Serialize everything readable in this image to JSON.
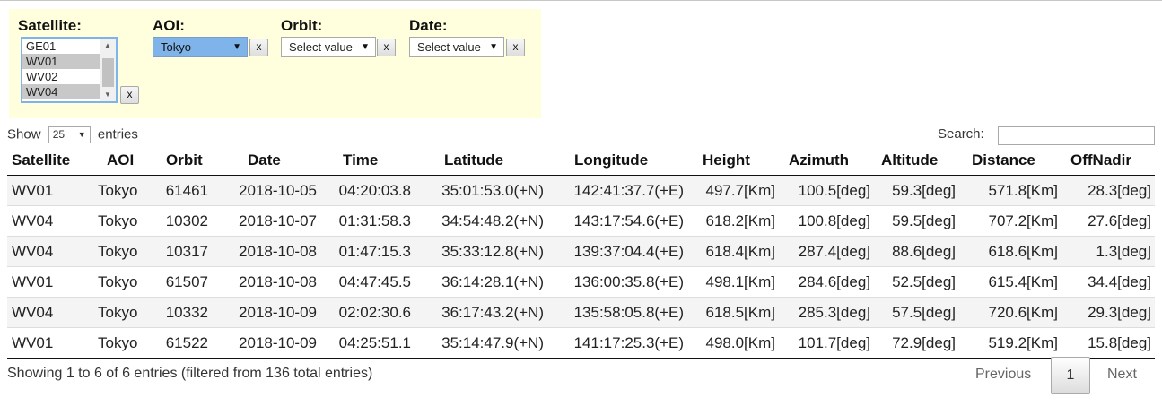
{
  "filters": {
    "satellite": {
      "label": "Satellite:",
      "options": [
        {
          "text": "GE01",
          "selected": false
        },
        {
          "text": "WV01",
          "selected": true
        },
        {
          "text": "WV02",
          "selected": false
        },
        {
          "text": "WV04",
          "selected": true
        }
      ],
      "clear_label": "x"
    },
    "aoi": {
      "label": "AOI:",
      "value": "Tokyo",
      "clear_label": "x"
    },
    "orbit": {
      "label": "Orbit:",
      "value": "Select value",
      "clear_label": "x"
    },
    "date": {
      "label": "Date:",
      "value": "Select value",
      "clear_label": "x"
    }
  },
  "length": {
    "prefix": "Show",
    "value": "25",
    "suffix": "entries"
  },
  "search": {
    "label": "Search:",
    "value": ""
  },
  "table": {
    "headers": [
      "Satellite",
      "AOI",
      "Orbit",
      "Date",
      "Time",
      "Latitude",
      "Longitude",
      "Height",
      "Azimuth",
      "Altitude",
      "Distance",
      "OffNadir"
    ],
    "rows": [
      [
        "WV01",
        "Tokyo",
        "61461",
        "2018-10-05",
        "04:20:03.8",
        "35:01:53.0(+N)",
        "142:41:37.7(+E)",
        "497.7[Km]",
        "100.5[deg]",
        "59.3[deg]",
        "571.8[Km]",
        "28.3[deg]"
      ],
      [
        "WV04",
        "Tokyo",
        "10302",
        "2018-10-07",
        "01:31:58.3",
        "34:54:48.2(+N)",
        "143:17:54.6(+E)",
        "618.2[Km]",
        "100.8[deg]",
        "59.5[deg]",
        "707.2[Km]",
        "27.6[deg]"
      ],
      [
        "WV04",
        "Tokyo",
        "10317",
        "2018-10-08",
        "01:47:15.3",
        "35:33:12.8(+N)",
        "139:37:04.4(+E)",
        "618.4[Km]",
        "287.4[deg]",
        "88.6[deg]",
        "618.6[Km]",
        "1.3[deg]"
      ],
      [
        "WV01",
        "Tokyo",
        "61507",
        "2018-10-08",
        "04:47:45.5",
        "36:14:28.1(+N)",
        "136:00:35.8(+E)",
        "498.1[Km]",
        "284.6[deg]",
        "52.5[deg]",
        "615.4[Km]",
        "34.4[deg]"
      ],
      [
        "WV04",
        "Tokyo",
        "10332",
        "2018-10-09",
        "02:02:30.6",
        "36:17:43.2(+N)",
        "135:58:05.8(+E)",
        "618.5[Km]",
        "285.3[deg]",
        "57.5[deg]",
        "720.6[Km]",
        "29.3[deg]"
      ],
      [
        "WV01",
        "Tokyo",
        "61522",
        "2018-10-09",
        "04:25:51.1",
        "35:14:47.9(+N)",
        "141:17:25.3(+E)",
        "498.0[Km]",
        "101.7[deg]",
        "72.9[deg]",
        "519.2[Km]",
        "15.8[deg]"
      ]
    ]
  },
  "footer": {
    "info": "Showing 1 to 6 of 6 entries (filtered from 136 total entries)",
    "previous": "Previous",
    "page": "1",
    "next": "Next"
  },
  "icons": {
    "caret": "dropdown-caret-icon",
    "scroll_up": "scroll-up-arrow-icon",
    "scroll_down": "scroll-down-arrow-icon"
  }
}
